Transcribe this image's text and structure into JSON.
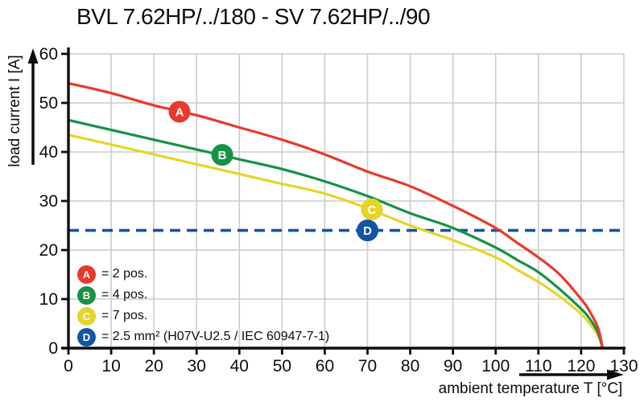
{
  "title": "BVL 7.62HP/../180 - SV 7.62HP/../90",
  "colors": {
    "background": "#ffffff",
    "grid": "#cccccc",
    "axis": "#0d0d0d",
    "text": "#0d0d0d",
    "series_a_red": "#e8392b",
    "series_b_green": "#169245",
    "series_c_yellow": "#e5d52a",
    "series_d_blue": "#1355a4"
  },
  "chart_data": {
    "type": "line",
    "title": "BVL 7.62HP/../180 - SV 7.62HP/../90",
    "xlabel": "ambient temperature T [°C]",
    "ylabel": "load current I [A]",
    "xlim": [
      0,
      130
    ],
    "ylim": [
      0,
      60
    ],
    "x_ticks": [
      0,
      10,
      20,
      30,
      40,
      50,
      60,
      70,
      80,
      90,
      100,
      110,
      120,
      130
    ],
    "y_ticks": [
      0,
      10,
      20,
      30,
      40,
      50,
      60
    ],
    "grid": true,
    "legend_position": "lower-left-inside",
    "x": [
      0,
      10,
      20,
      30,
      40,
      50,
      60,
      70,
      80,
      90,
      100,
      105,
      110,
      115,
      120,
      122,
      124,
      125
    ],
    "series": [
      {
        "name": "A",
        "label": "= 2 pos.",
        "color": "#e8392b",
        "style": "solid",
        "values": [
          54,
          52,
          49.5,
          47.5,
          45,
          42.5,
          39.5,
          36,
          33,
          29,
          24.5,
          21.5,
          18.5,
          15,
          10,
          7.5,
          4,
          0
        ],
        "marker": {
          "letter": "A",
          "x": 26,
          "y": 48.2
        }
      },
      {
        "name": "B",
        "label": "= 4 pos.",
        "color": "#169245",
        "style": "solid",
        "values": [
          46.5,
          44.5,
          42.5,
          40.5,
          38.5,
          36.5,
          34,
          31,
          27.5,
          24.5,
          20.5,
          18,
          15.5,
          12,
          8,
          6,
          3,
          0
        ],
        "marker": {
          "letter": "B",
          "x": 36,
          "y": 39.4
        }
      },
      {
        "name": "C",
        "label": "= 7 pos.",
        "color": "#e5d52a",
        "style": "solid",
        "values": [
          43.5,
          41.5,
          39.5,
          37.5,
          35.5,
          33.5,
          31.5,
          28.5,
          25,
          22,
          18.5,
          16,
          13.5,
          10.5,
          7,
          5,
          2.5,
          0
        ],
        "marker": {
          "letter": "C",
          "x": 71,
          "y": 28.3
        }
      },
      {
        "name": "D",
        "label": "= 2.5 mm² (H07V-U2.5 / IEC 60947-7-1)",
        "color": "#1355a4",
        "style": "dashed",
        "constant": 24,
        "marker": {
          "letter": "D",
          "x": 70,
          "y": 24
        }
      }
    ]
  }
}
